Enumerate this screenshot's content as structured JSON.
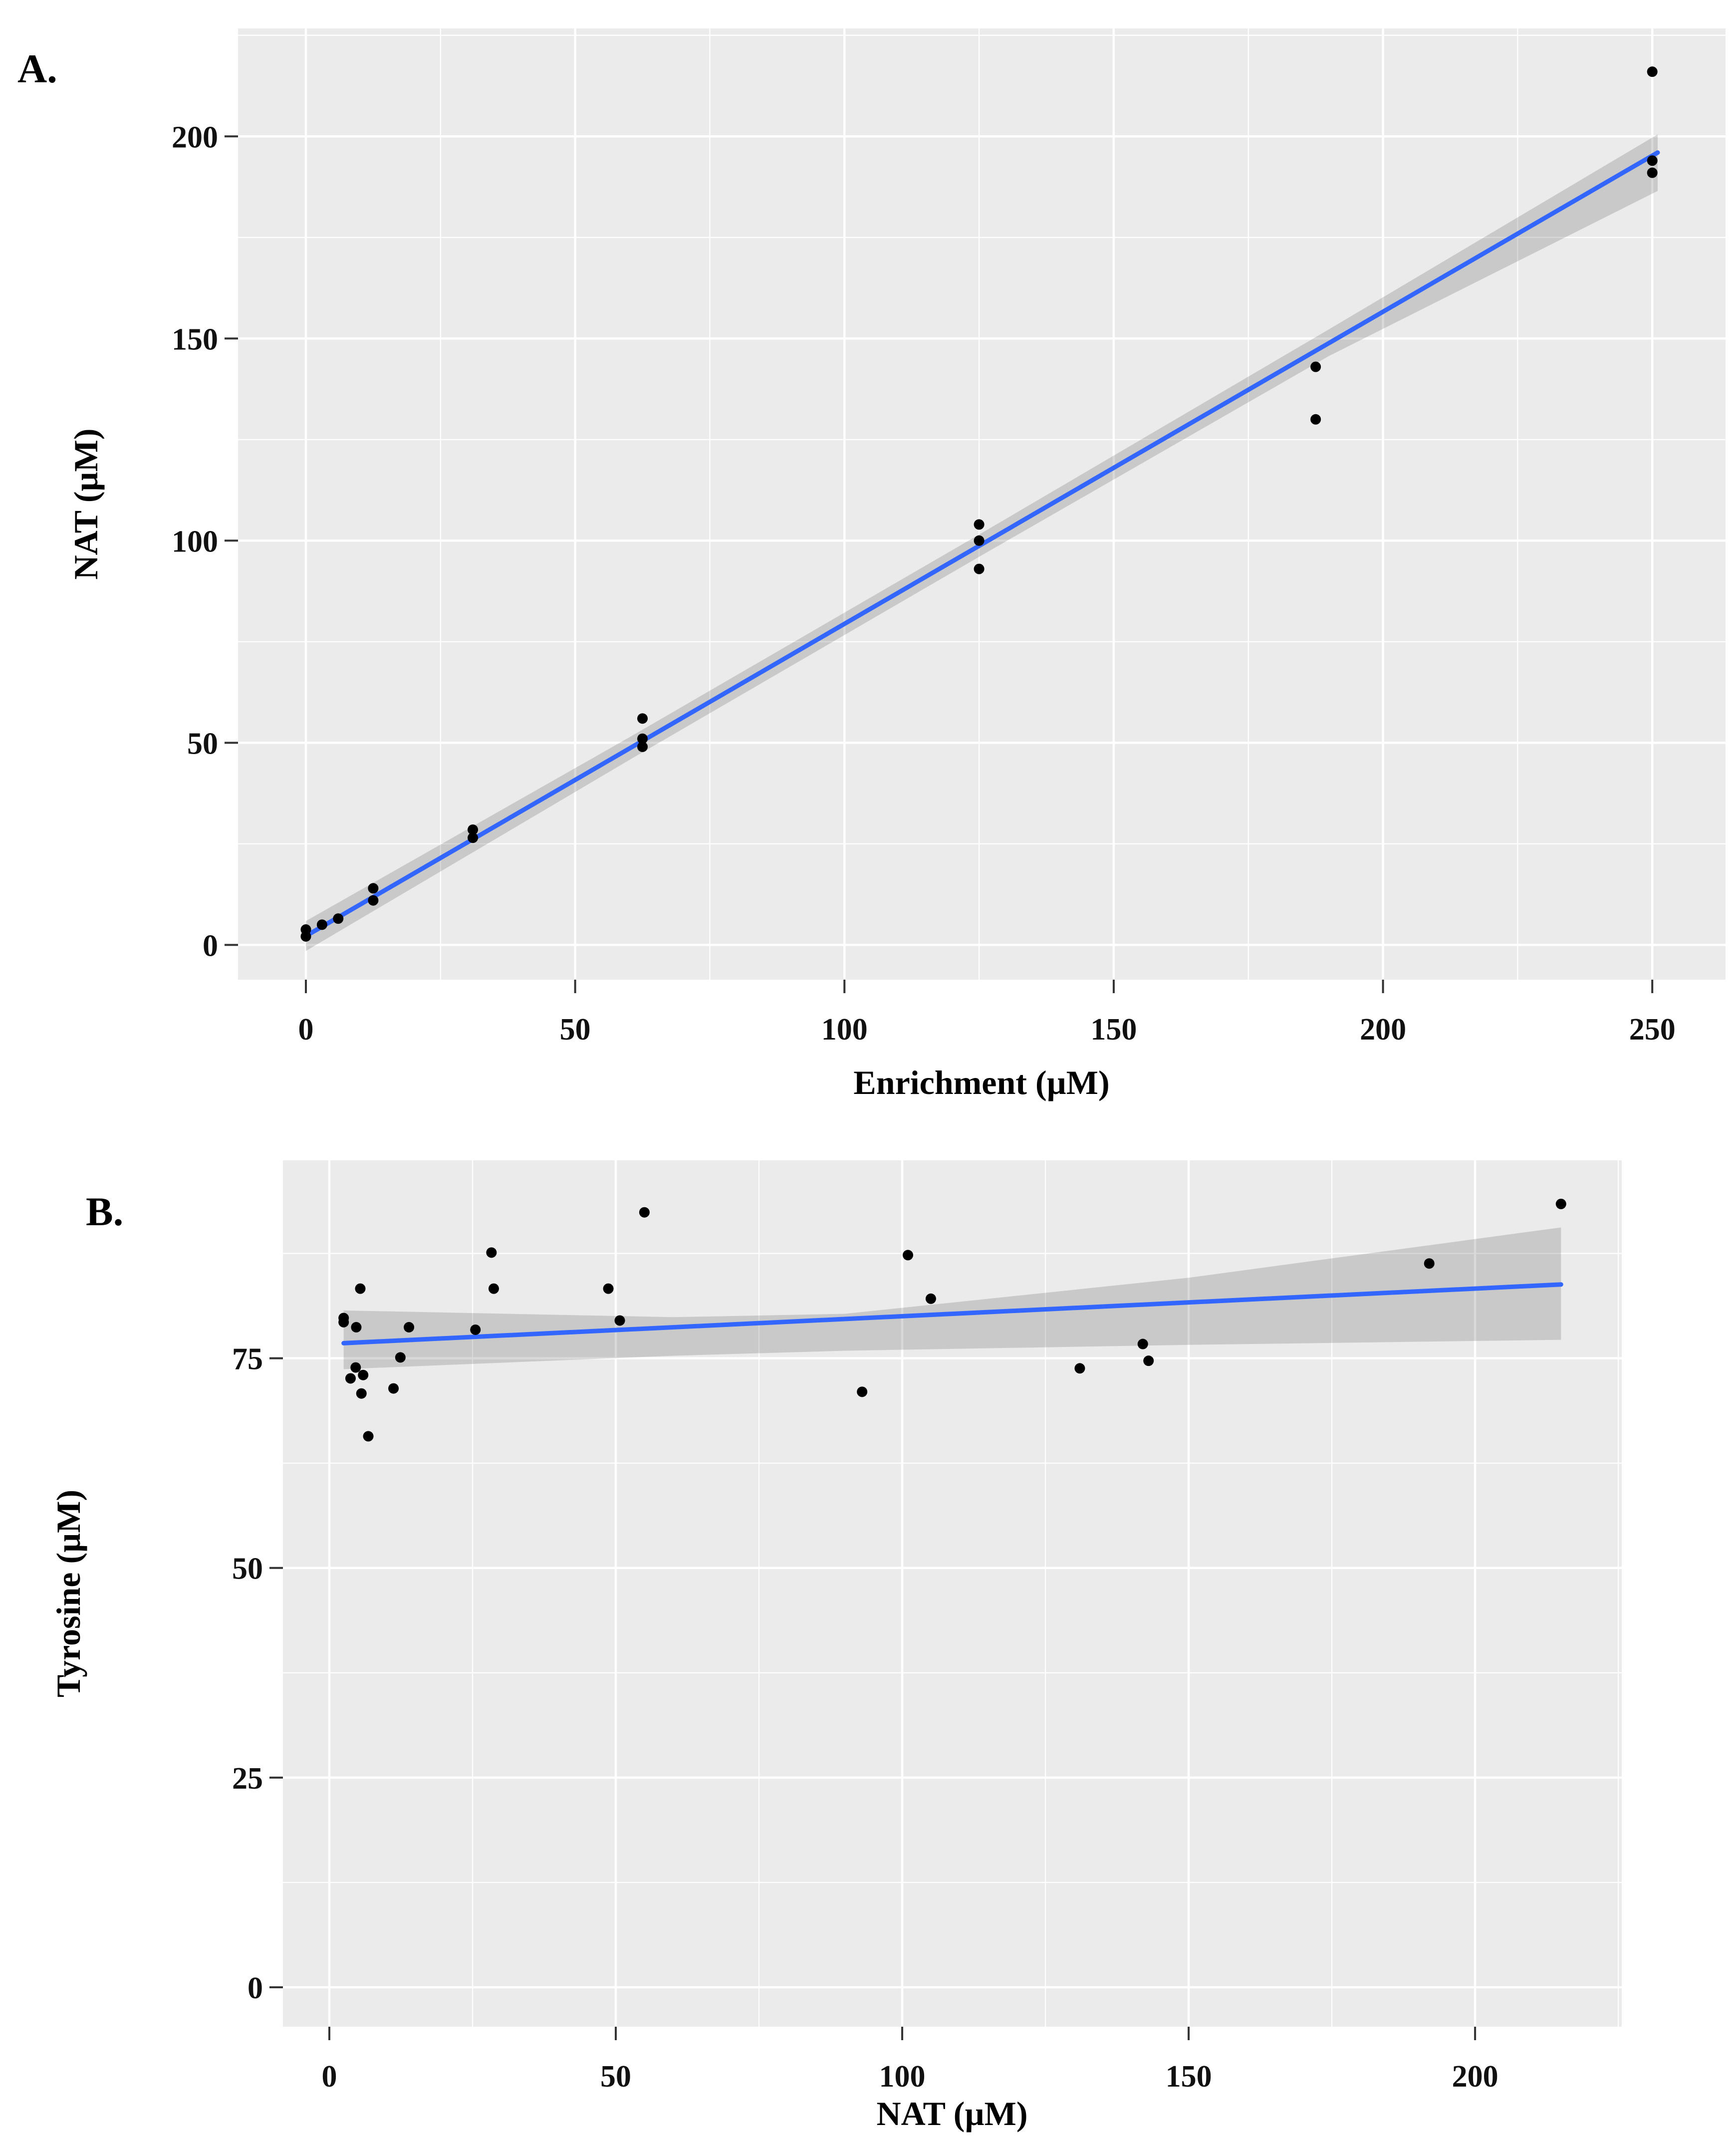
{
  "figure": {
    "background": "#FFFFFF",
    "panel_background": "#EBEBEB",
    "gridline_color": "#FFFFFF",
    "point_color": "#000000",
    "regression_line_color": "#3366FF",
    "ci_band_color": "rgba(80,80,80,0.22)",
    "tick_mark_color": "#333333"
  },
  "chart_data": [
    {
      "type": "scatter",
      "panel_label": "A.",
      "title": "",
      "xlabel": "Enrichment (µM)",
      "ylabel": "NAT (µM)",
      "xlim": [
        -12.6,
        263.6
      ],
      "ylim": [
        -8.6,
        226.7
      ],
      "x_ticks": [
        0,
        50,
        100,
        150,
        200,
        250
      ],
      "y_ticks": [
        0,
        50,
        100,
        150,
        200
      ],
      "x_minor_ticks": [
        25,
        75,
        125,
        175,
        225
      ],
      "y_minor_ticks": [
        25,
        75,
        125,
        175,
        225
      ],
      "grid": true,
      "legend": "none",
      "points": [
        [
          0,
          2.1
        ],
        [
          0,
          3.8
        ],
        [
          3,
          5
        ],
        [
          6,
          6.5
        ],
        [
          12.5,
          11
        ],
        [
          12.5,
          14
        ],
        [
          31,
          26.5
        ],
        [
          31,
          28.5
        ],
        [
          62.5,
          49
        ],
        [
          62.5,
          51
        ],
        [
          62.5,
          56
        ],
        [
          125,
          93
        ],
        [
          125,
          100
        ],
        [
          125,
          104
        ],
        [
          187.5,
          130
        ],
        [
          187.5,
          143
        ],
        [
          250,
          191
        ],
        [
          250,
          194
        ],
        [
          250,
          216
        ]
      ],
      "regression_line": {
        "x": [
          0,
          251
        ],
        "y": [
          2.2,
          196
        ]
      },
      "ci_band": {
        "x": [
          0,
          60,
          125,
          190,
          251
        ],
        "upper": [
          5.9,
          51.3,
          101.5,
          152.3,
          200.5
        ],
        "lower": [
          -1.5,
          45.7,
          96.0,
          145.7,
          186.5
        ]
      }
    },
    {
      "type": "scatter",
      "panel_label": "B.",
      "title": "",
      "xlabel": "NAT (µM)",
      "ylabel": "Tyrosine (µM)",
      "xlim": [
        -8.1,
        225.6
      ],
      "ylim": [
        -4.7,
        98.6
      ],
      "x_ticks": [
        0,
        50,
        100,
        150,
        200
      ],
      "y_ticks": [
        0,
        25,
        50,
        75
      ],
      "x_minor_ticks": [
        25,
        75,
        125,
        175,
        225
      ],
      "y_minor_ticks": [
        12.5,
        37.5,
        62.5,
        87.5
      ],
      "grid": true,
      "legend": "none",
      "points": [
        [
          5.4,
          83.3
        ],
        [
          2.5,
          79.8
        ],
        [
          2.5,
          79.3
        ],
        [
          4.7,
          78.7
        ],
        [
          13.9,
          78.7
        ],
        [
          25.5,
          78.4
        ],
        [
          12.4,
          75.1
        ],
        [
          4.6,
          73.9
        ],
        [
          3.7,
          72.6
        ],
        [
          5.9,
          73.0
        ],
        [
          5.6,
          70.8
        ],
        [
          11.2,
          71.4
        ],
        [
          6.8,
          65.7
        ],
        [
          28.3,
          87.6
        ],
        [
          28.7,
          83.3
        ],
        [
          48.7,
          83.3
        ],
        [
          50.7,
          79.5
        ],
        [
          55,
          92.4
        ],
        [
          93,
          71.0
        ],
        [
          101,
          87.3
        ],
        [
          105,
          82.1
        ],
        [
          131,
          73.8
        ],
        [
          142,
          76.7
        ],
        [
          143,
          74.7
        ],
        [
          192,
          86.3
        ],
        [
          215,
          93.4
        ]
      ],
      "regression_line": {
        "x": [
          2.5,
          215
        ],
        "y": [
          76.8,
          83.8
        ]
      },
      "ci_band": {
        "x": [
          2.5,
          60,
          90,
          150,
          215
        ],
        "upper": [
          80.7,
          79.9,
          80.3,
          84.6,
          90.6
        ],
        "lower": [
          73.7,
          75.3,
          75.9,
          76.6,
          77.2
        ]
      }
    }
  ]
}
